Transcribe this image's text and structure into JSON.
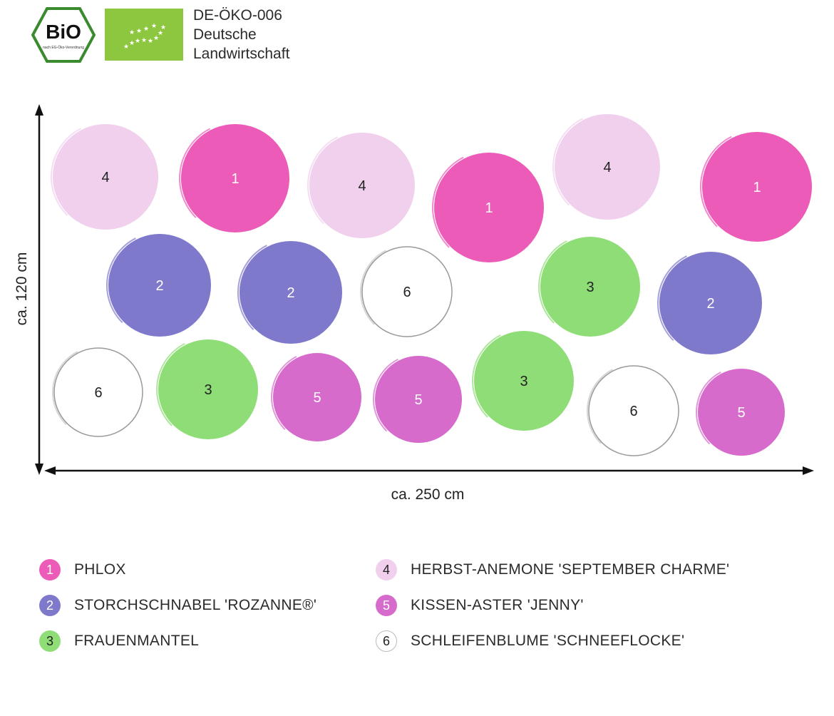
{
  "certification": {
    "bio_label": "BiO",
    "bio_subtext": "nach EG-Öko-Verordnung",
    "code": "DE-ÖKO-006",
    "line2": "Deutsche",
    "line3": "Landwirtschaft"
  },
  "dimensions": {
    "height_label": "ca. 120 cm",
    "width_label": "ca. 250 cm"
  },
  "colors": {
    "1": "#ec5bb8",
    "2": "#7f79cc",
    "3": "#8fdd77",
    "4": "#f1d0ee",
    "5": "#d66bcc",
    "6": "#ffffff"
  },
  "plants": [
    "4",
    "1",
    "4",
    "1",
    "4",
    "1",
    "2",
    "2",
    "6",
    "3",
    "2",
    "6",
    "3",
    "5",
    "5",
    "3",
    "6",
    "5"
  ],
  "legend": [
    {
      "number": "1",
      "name": "PHLOX"
    },
    {
      "number": "2",
      "name": "STORCHSCHNABEL 'ROZANNE®'"
    },
    {
      "number": "3",
      "name": "FRAUENMANTEL"
    },
    {
      "number": "4",
      "name": "HERBST-ANEMONE 'SEPTEMBER CHARME'"
    },
    {
      "number": "5",
      "name": "KISSEN-ASTER 'JENNY'"
    },
    {
      "number": "6",
      "name": "SCHLEIFENBLUME 'SCHNEEFLOCKE'"
    }
  ]
}
